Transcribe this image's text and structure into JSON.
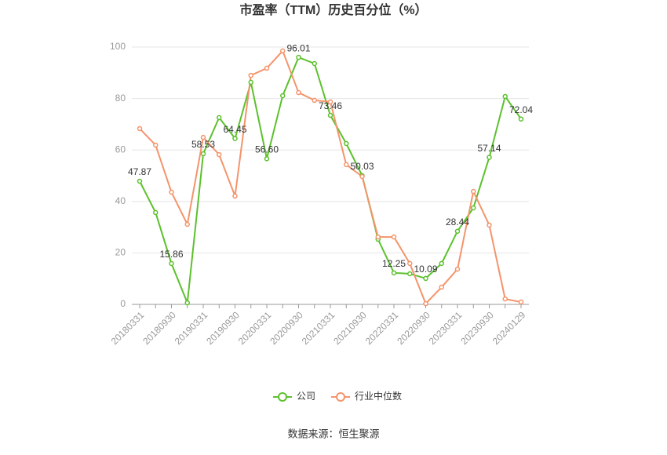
{
  "chart_data": {
    "type": "line",
    "title": "市盈率（TTM）历史百分位（%）",
    "source": "数据来源：恒生聚源",
    "categories": [
      "20180331",
      null,
      "20180930",
      null,
      "20190331",
      null,
      "20190930",
      null,
      "20200331",
      null,
      "20200930",
      null,
      "20210331",
      null,
      "20210930",
      null,
      "20220331",
      null,
      "20220930",
      null,
      "20230331",
      null,
      "20230930",
      null,
      "20240129"
    ],
    "series": [
      {
        "name": "公司",
        "color": "#5cc12d",
        "values": [
          47.87,
          35.7,
          15.86,
          0.6,
          58.53,
          72.6,
          64.45,
          86.3,
          56.6,
          81.1,
          96.01,
          93.6,
          73.46,
          62.5,
          50.03,
          25.3,
          12.25,
          11.9,
          10.09,
          15.9,
          28.44,
          37.5,
          57.14,
          80.8,
          72.04
        ],
        "value_labels": [
          "47.87",
          null,
          "15.86",
          null,
          "58.53",
          null,
          "64.45",
          null,
          "56.60",
          null,
          "96.01",
          null,
          "73.46",
          null,
          "50.03",
          null,
          "12.25",
          null,
          "10.09",
          null,
          "28.44",
          null,
          "57.14",
          null,
          "72.04"
        ]
      },
      {
        "name": "行业中位数",
        "color": "#f4946b",
        "values": [
          68.3,
          61.9,
          43.6,
          31.1,
          64.9,
          58.2,
          42.1,
          89.0,
          91.8,
          98.5,
          82.3,
          79.3,
          78.7,
          54.3,
          49.7,
          26.2,
          26.2,
          15.9,
          0.3,
          6.7,
          13.7,
          43.9,
          30.8,
          2.1,
          0.9
        ]
      }
    ],
    "ylim": [
      0,
      100
    ],
    "yticks": [
      0,
      20,
      40,
      60,
      80,
      100
    ],
    "grid": true,
    "legend": "bottom"
  }
}
